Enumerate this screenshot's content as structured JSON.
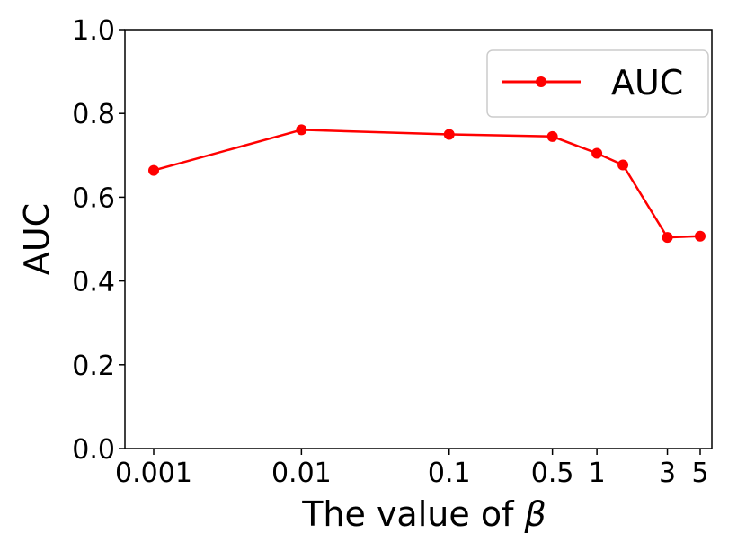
{
  "chart_data": {
    "type": "line",
    "title": "",
    "xlabel": "The value of",
    "xlabel_symbol": "β",
    "ylabel": "AUC",
    "x_scale": "log",
    "x_tick_values": [
      0.001,
      0.01,
      0.1,
      0.5,
      1,
      3,
      5
    ],
    "x_tick_labels": [
      "0.001",
      "0.01",
      "0.1",
      "0.5",
      "1",
      "3",
      "5"
    ],
    "y_tick_values": [
      0.0,
      0.2,
      0.4,
      0.6,
      0.8,
      1.0
    ],
    "y_tick_labels": [
      "0.0",
      "0.2",
      "0.4",
      "0.6",
      "0.8",
      "1.0"
    ],
    "ylim": [
      0.0,
      1.0
    ],
    "grid": false,
    "legend_position": "top-right",
    "series": [
      {
        "name": "AUC",
        "color": "#ff0000",
        "x": [
          0.001,
          0.01,
          0.1,
          0.5,
          1,
          1.5,
          3,
          5
        ],
        "y": [
          0.664,
          0.761,
          0.75,
          0.745,
          0.705,
          0.677,
          0.504,
          0.507
        ]
      }
    ]
  }
}
